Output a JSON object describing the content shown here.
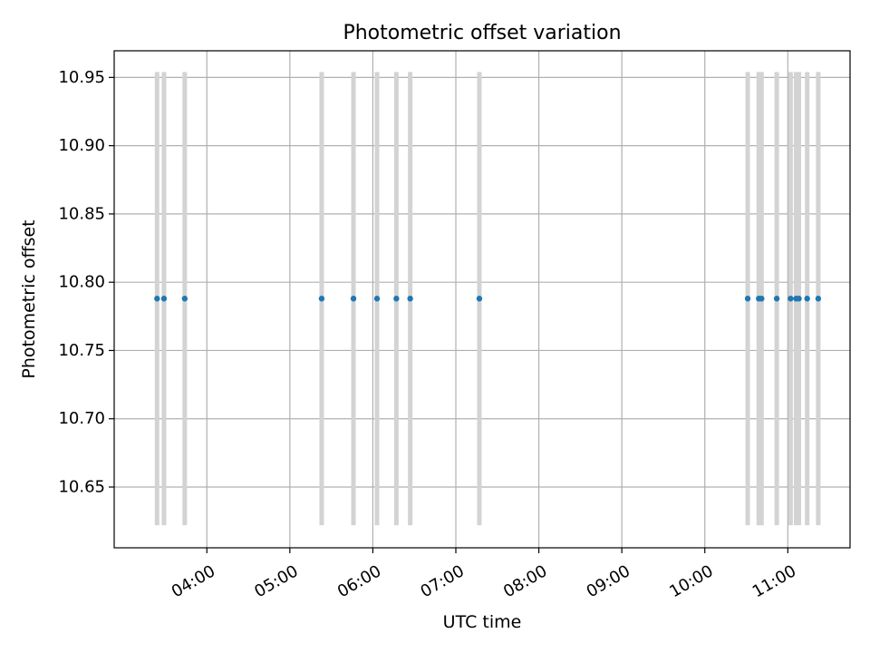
{
  "chart_data": {
    "type": "scatter",
    "title": "Photometric offset variation",
    "xlabel": "UTC time",
    "ylabel": "Photometric offset",
    "x_axis_type": "time",
    "xlim": [
      "02:53",
      "11:45"
    ],
    "ylim": [
      10.6055,
      10.9695
    ],
    "grid": true,
    "x_tick_labels": [
      "04:00",
      "05:00",
      "06:00",
      "07:00",
      "08:00",
      "09:00",
      "10:00",
      "11:00"
    ],
    "y_tick_labels": [
      "10.65",
      "10.70",
      "10.75",
      "10.80",
      "10.85",
      "10.90",
      "10.95"
    ],
    "points": [
      {
        "x": "03:24",
        "y": 10.788,
        "y_err": 0.166
      },
      {
        "x": "03:29",
        "y": 10.788,
        "y_err": 0.166
      },
      {
        "x": "03:44",
        "y": 10.788,
        "y_err": 0.166
      },
      {
        "x": "05:23",
        "y": 10.788,
        "y_err": 0.166
      },
      {
        "x": "05:46",
        "y": 10.788,
        "y_err": 0.166
      },
      {
        "x": "06:03",
        "y": 10.788,
        "y_err": 0.166
      },
      {
        "x": "06:17",
        "y": 10.788,
        "y_err": 0.166
      },
      {
        "x": "06:27",
        "y": 10.788,
        "y_err": 0.166
      },
      {
        "x": "07:17",
        "y": 10.788,
        "y_err": 0.166
      },
      {
        "x": "10:31",
        "y": 10.788,
        "y_err": 0.166
      },
      {
        "x": "10:39",
        "y": 10.788,
        "y_err": 0.166
      },
      {
        "x": "10:41",
        "y": 10.788,
        "y_err": 0.166
      },
      {
        "x": "10:52",
        "y": 10.788,
        "y_err": 0.166
      },
      {
        "x": "11:02",
        "y": 10.788,
        "y_err": 0.166
      },
      {
        "x": "11:06",
        "y": 10.788,
        "y_err": 0.166
      },
      {
        "x": "11:08",
        "y": 10.788,
        "y_err": 0.166
      },
      {
        "x": "11:14",
        "y": 10.788,
        "y_err": 0.166
      },
      {
        "x": "11:22",
        "y": 10.788,
        "y_err": 0.166
      }
    ],
    "colors": {
      "points": "#1f77b4",
      "error_bars": "#d3d3d3",
      "grid": "#b0b0b0",
      "axes": "#000000"
    }
  }
}
